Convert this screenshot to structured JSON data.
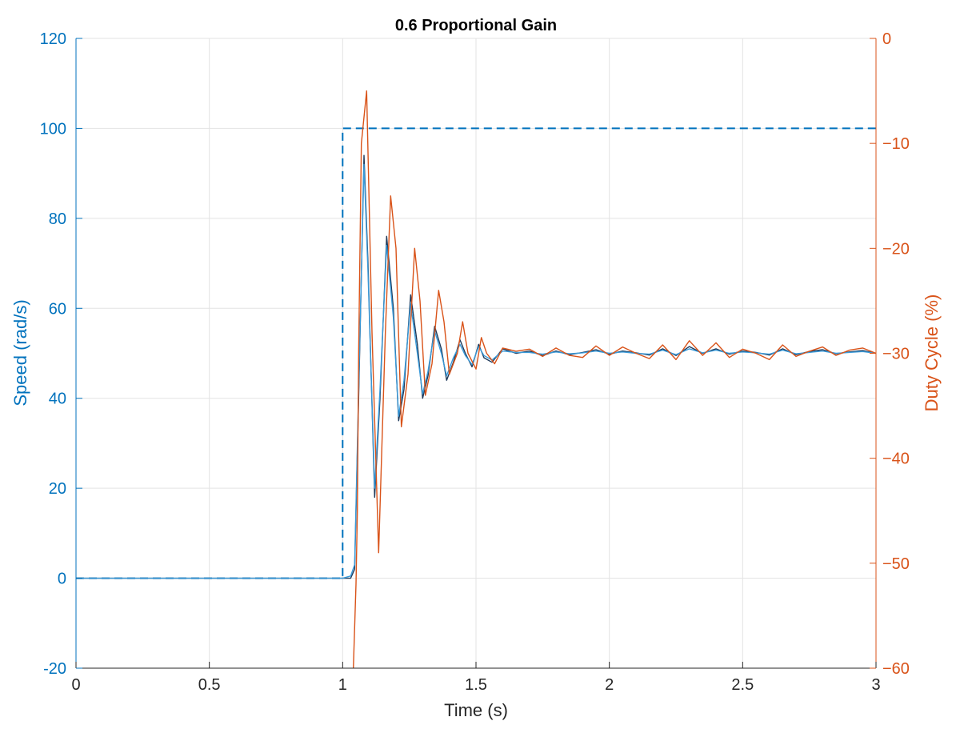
{
  "colors": {
    "speed": "#0072BD",
    "duty": "#D95319",
    "measured": "#1F3A5A",
    "grid": "#E3E3E3",
    "axis": "#262626"
  },
  "chart_data": {
    "type": "line",
    "title": "0.6 Proportional Gain",
    "xlabel": "Time (s)",
    "ylabel_left": "Speed (rad/s)",
    "ylabel_right": "Duty Cycle (%)",
    "xlim": [
      0,
      3
    ],
    "ylim_left": [
      -20,
      120
    ],
    "ylim_right": [
      -60,
      0
    ],
    "xticks": [
      "0",
      "0.5",
      "1",
      "1.5",
      "2",
      "2.5",
      "3"
    ],
    "yticks_left": [
      "-20",
      "0",
      "20",
      "40",
      "60",
      "80",
      "100",
      "120"
    ],
    "yticks_right": [
      "-60",
      "-50",
      "-40",
      "-30",
      "-20",
      "-10",
      "0"
    ],
    "grid": true,
    "legend": "none",
    "series": [
      {
        "axis": "left",
        "style": "dashed",
        "color": "#0072BD",
        "x": [
          0,
          1.0,
          1.0,
          1.015,
          3.0
        ],
        "y": [
          0,
          0,
          100,
          100,
          100
        ]
      },
      {
        "axis": "left",
        "style": "solid",
        "color": "#1F3A5A",
        "x": [
          0,
          1.0,
          1.03,
          1.045,
          1.06,
          1.08,
          1.095,
          1.12,
          1.14,
          1.165,
          1.19,
          1.21,
          1.23,
          1.255,
          1.28,
          1.3,
          1.32,
          1.345,
          1.37,
          1.39,
          1.415,
          1.44,
          1.46,
          1.485,
          1.51,
          1.53,
          1.56,
          1.6,
          1.65,
          1.7,
          1.75,
          1.8,
          1.85,
          1.9,
          1.95,
          2.0,
          2.05,
          2.1,
          2.15,
          2.2,
          2.25,
          2.3,
          2.35,
          2.4,
          2.45,
          2.5,
          2.55,
          2.6,
          2.65,
          2.7,
          2.75,
          2.8,
          2.85,
          2.9,
          2.95,
          3.0
        ],
        "y": [
          0,
          0,
          0,
          2,
          40,
          94,
          70,
          18,
          40,
          76,
          60,
          35,
          42,
          63,
          52,
          40,
          45,
          56,
          51,
          44,
          48,
          53,
          50,
          47,
          52,
          49,
          48,
          51,
          50,
          50.5,
          49.5,
          50.5,
          49.7,
          50.2,
          50.8,
          49.8,
          50.5,
          50.1,
          49.6,
          51.0,
          49.5,
          51.5,
          50.0,
          51.0,
          49.8,
          50.5,
          50.2,
          49.6,
          51.0,
          49.7,
          50.4,
          50.8,
          49.9,
          50.3,
          50.6,
          50.0
        ]
      },
      {
        "axis": "left",
        "style": "solid",
        "color": "#3A9AD9",
        "x": [
          0,
          1.0,
          1.03,
          1.045,
          1.06,
          1.08,
          1.095,
          1.12,
          1.14,
          1.165,
          1.19,
          1.21,
          1.23,
          1.255,
          1.28,
          1.3,
          1.32,
          1.345,
          1.37,
          1.39,
          1.415,
          1.44,
          1.46,
          1.485,
          1.51,
          1.53,
          1.56,
          1.6,
          1.65,
          1.7,
          1.75,
          1.8,
          1.85,
          1.9,
          1.95,
          2.0,
          2.05,
          2.1,
          2.15,
          2.2,
          2.25,
          2.3,
          2.35,
          2.4,
          2.45,
          2.5,
          2.55,
          2.6,
          2.65,
          2.7,
          2.75,
          2.8,
          2.85,
          2.9,
          2.95,
          3.0
        ],
        "y": [
          0,
          0,
          0.5,
          3,
          42,
          92,
          68,
          20,
          42,
          74,
          58,
          36,
          44,
          61,
          50,
          41,
          46,
          55,
          50,
          45,
          49,
          52,
          49.5,
          47.5,
          51.5,
          49.5,
          48.5,
          50.5,
          50.2,
          50.2,
          49.8,
          50.3,
          49.9,
          50.1,
          50.5,
          50.0,
          50.3,
          50.0,
          49.8,
          50.7,
          49.7,
          51.0,
          50.1,
          50.7,
          50.0,
          50.3,
          50.1,
          49.8,
          50.7,
          49.9,
          50.2,
          50.5,
          50.0,
          50.2,
          50.4,
          50.0
        ]
      },
      {
        "axis": "right",
        "style": "solid",
        "color": "#D95319",
        "x": [
          1.04,
          1.05,
          1.055,
          1.06,
          1.07,
          1.09,
          1.11,
          1.135,
          1.16,
          1.18,
          1.2,
          1.22,
          1.245,
          1.27,
          1.29,
          1.31,
          1.335,
          1.36,
          1.38,
          1.4,
          1.43,
          1.45,
          1.47,
          1.5,
          1.52,
          1.54,
          1.57,
          1.6,
          1.65,
          1.7,
          1.75,
          1.8,
          1.85,
          1.9,
          1.95,
          2.0,
          2.05,
          2.1,
          2.15,
          2.2,
          2.25,
          2.3,
          2.35,
          2.4,
          2.45,
          2.5,
          2.55,
          2.6,
          2.65,
          2.7,
          2.75,
          2.8,
          2.85,
          2.9,
          2.95,
          3.0
        ],
        "y": [
          -60,
          -52,
          -45,
          -30,
          -10,
          -5,
          -28,
          -49,
          -28,
          -15,
          -20,
          -37,
          -32,
          -20,
          -25,
          -34,
          -31,
          -24,
          -27,
          -32,
          -30,
          -27,
          -30,
          -31.5,
          -28.5,
          -30,
          -31,
          -29.5,
          -29.8,
          -29.6,
          -30.3,
          -29.5,
          -30.2,
          -30.4,
          -29.3,
          -30.2,
          -29.4,
          -30.0,
          -30.5,
          -29.2,
          -30.6,
          -28.8,
          -30.2,
          -29.0,
          -30.4,
          -29.6,
          -30.0,
          -30.6,
          -29.2,
          -30.3,
          -29.8,
          -29.4,
          -30.2,
          -29.7,
          -29.5,
          -30.0
        ]
      }
    ]
  }
}
